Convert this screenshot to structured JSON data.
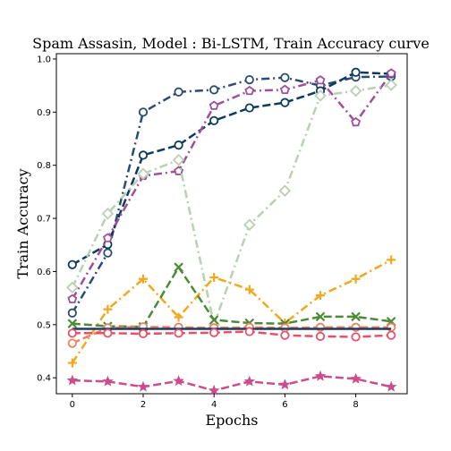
{
  "chart_data": {
    "type": "line",
    "title": "Spam Assasin, Model : Bi-LSTM, Train Accuracy curve",
    "xlabel": "Epochs",
    "ylabel": "Train Accuracy",
    "xlim": [
      -0.45,
      9.45
    ],
    "ylim": [
      0.37,
      1.01
    ],
    "xticks": [
      0,
      2,
      4,
      6,
      8
    ],
    "yticks": [
      0.4,
      0.5,
      0.6,
      0.7,
      0.8,
      0.9,
      1.0
    ],
    "grid": false,
    "legend": "none",
    "x": [
      0,
      1,
      2,
      3,
      4,
      5,
      6,
      7,
      8,
      9
    ],
    "series": [
      {
        "values": [
          0.522,
          0.635,
          0.9,
          0.938,
          0.942,
          0.961,
          0.965,
          0.95,
          0.966,
          0.967
        ],
        "color": "#2b4b73",
        "dash": "dashdot",
        "marker": "circle"
      },
      {
        "values": [
          0.613,
          0.651,
          0.819,
          0.838,
          0.884,
          0.908,
          0.918,
          0.94,
          0.975,
          0.972
        ],
        "color": "#0d3b5c",
        "dash": "dashed",
        "marker": "circle"
      },
      {
        "values": [
          0.548,
          0.663,
          0.78,
          0.789,
          0.912,
          0.94,
          0.942,
          0.96,
          0.881,
          0.973
        ],
        "color": "#a04f9a",
        "dash": "dashdot",
        "marker": "pentagon"
      },
      {
        "values": [
          0.57,
          0.709,
          0.784,
          0.81,
          0.5,
          0.688,
          0.752,
          0.931,
          0.94,
          0.951
        ],
        "color": "#b9d0b2",
        "dash": "dashdot",
        "marker": "diamond"
      },
      {
        "values": [
          0.428,
          0.529,
          0.586,
          0.514,
          0.589,
          0.566,
          0.503,
          0.555,
          0.586,
          0.622
        ],
        "color": "#f2a81d",
        "dash": "dashdot",
        "marker": "plus"
      },
      {
        "values": [
          0.502,
          0.497,
          0.496,
          0.608,
          0.509,
          0.503,
          0.502,
          0.515,
          0.515,
          0.506
        ],
        "color": "#4b8a36",
        "dash": "dashed",
        "marker": "x"
      },
      {
        "values": [
          0.465,
          0.494,
          0.496,
          0.495,
          0.494,
          0.495,
          0.494,
          0.495,
          0.495,
          0.495
        ],
        "color": "#f08060",
        "dash": "dashed",
        "marker": "circle"
      },
      {
        "values": [
          0.492,
          0.492,
          0.492,
          0.492,
          0.492,
          0.492,
          0.492,
          0.492,
          0.492,
          0.492
        ],
        "color": "#1f3a5f",
        "dash": "solid",
        "marker": "none"
      },
      {
        "values": [
          0.484,
          0.484,
          0.483,
          0.484,
          0.485,
          0.487,
          0.48,
          0.478,
          0.477,
          0.48
        ],
        "color": "#e8506a",
        "dash": "dashed",
        "marker": "circle"
      },
      {
        "values": [
          0.395,
          0.393,
          0.383,
          0.394,
          0.376,
          0.393,
          0.387,
          0.403,
          0.398,
          0.383
        ],
        "color": "#cc4d8a",
        "dash": "dashed",
        "marker": "star"
      }
    ]
  }
}
